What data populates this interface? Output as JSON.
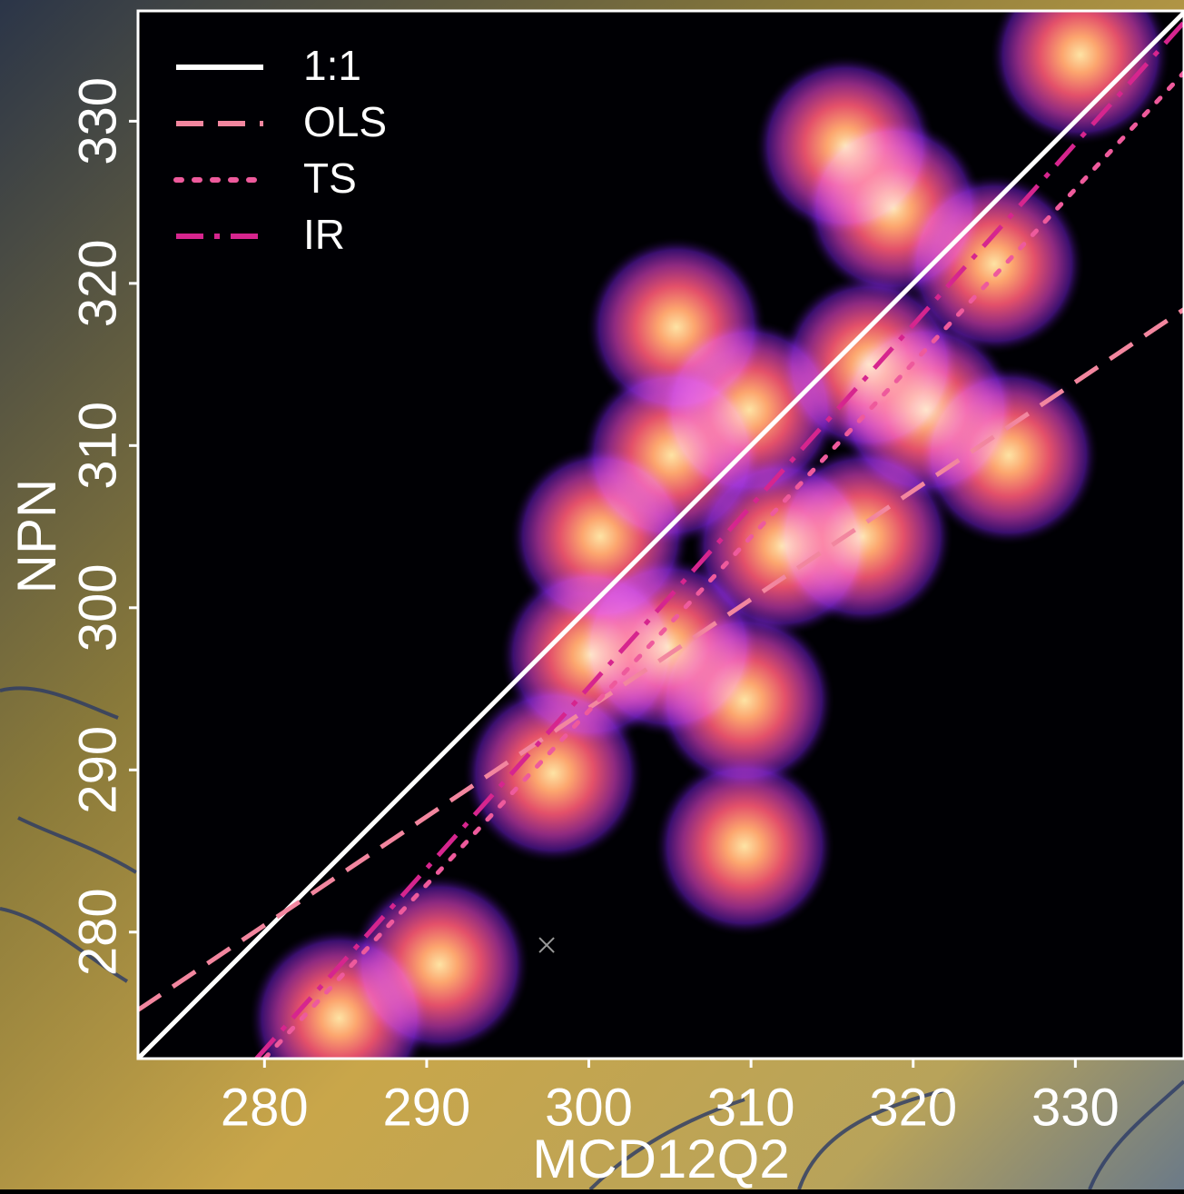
{
  "chart_data": {
    "type": "density",
    "x_label": "MCD12Q2",
    "y_label": "NPN",
    "xlim": [
      272.2,
      336.7
    ],
    "ylim": [
      272.2,
      336.8
    ],
    "xticks": [
      280,
      290,
      300,
      310,
      320,
      330
    ],
    "yticks": [
      280,
      290,
      300,
      310,
      320,
      330
    ],
    "points": {
      "x": [
        330.3,
        315.8,
        318.8,
        305.4,
        305.1,
        309.9,
        325,
        317.3,
        320.8,
        325.9,
        300.7,
        311.9,
        316.9,
        304.9,
        300.1,
        309.6,
        297.8,
        309.6,
        290.8,
        284.6
      ],
      "y": [
        334.1,
        328.5,
        324.6,
        317.3,
        309.4,
        312.2,
        321.2,
        315,
        312.2,
        309.4,
        304.4,
        303.8,
        304.4,
        297.6,
        297.1,
        294.3,
        289.8,
        285.3,
        278,
        274.7
      ]
    },
    "marker": {
      "x": 297.4,
      "y": 279.2
    },
    "lines": [
      {
        "name": "1:1",
        "color": "#ffffff",
        "dash": "solid",
        "x": [
          272.2,
          336.8
        ],
        "values": [
          272.2,
          336.8
        ]
      },
      {
        "name": "OLS",
        "color": "#f2869f",
        "dash": "dashed",
        "x": [
          272.2,
          336.7
        ],
        "values": [
          275.2,
          318.4
        ]
      },
      {
        "name": "TS",
        "color": "#ee5a9c",
        "dash": "dotted",
        "x": [
          280,
          336.7
        ],
        "values": [
          272.2,
          333
        ]
      },
      {
        "name": "IR",
        "color": "#d6258e",
        "dash": "dashdot",
        "x": [
          279.5,
          336.7
        ],
        "values": [
          272.2,
          336.1
        ]
      }
    ],
    "legend": "top-left"
  }
}
